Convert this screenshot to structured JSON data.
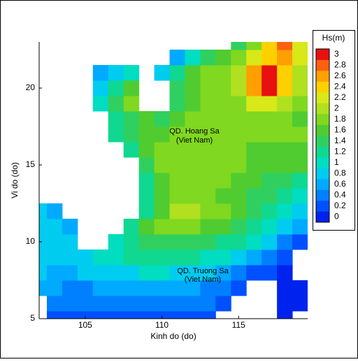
{
  "chart_data": {
    "type": "heatmap",
    "x_label": "Kinh do (do)",
    "y_label": "Vi do (do)",
    "colorbar_title": "Hs(m)",
    "x": [
      102,
      103,
      104,
      105,
      106,
      107,
      108,
      109,
      110,
      111,
      112,
      113,
      114,
      115,
      116,
      117,
      118,
      119
    ],
    "y": [
      5,
      6,
      7,
      8,
      9,
      10,
      11,
      12,
      13,
      14,
      15,
      16,
      17,
      18,
      19,
      20,
      21,
      22,
      23
    ],
    "values": [
      [
        null,
        0.2,
        0.2,
        0.2,
        0.2,
        0.2,
        0.2,
        0.2,
        0.2,
        0.2,
        0.2,
        0.2,
        null,
        null,
        null,
        null,
        0.0,
        null
      ],
      [
        null,
        0.4,
        0.4,
        0.4,
        0.4,
        0.4,
        0.4,
        0.4,
        0.4,
        0.4,
        0.4,
        0.4,
        0.2,
        null,
        null,
        null,
        0.0,
        0.0
      ],
      [
        0.6,
        0.6,
        0.4,
        0.4,
        0.6,
        0.6,
        0.6,
        0.6,
        0.6,
        0.6,
        0.6,
        0.4,
        0.4,
        0.2,
        null,
        null,
        0.0,
        0.0
      ],
      [
        0.8,
        0.6,
        0.6,
        0.8,
        0.8,
        0.8,
        0.8,
        1.0,
        1.0,
        0.8,
        0.8,
        0.8,
        0.6,
        0.4,
        0.2,
        0.2,
        0.0,
        null
      ],
      [
        0.8,
        0.8,
        0.8,
        0.8,
        1.0,
        1.0,
        1.2,
        1.2,
        1.2,
        1.2,
        1.2,
        1.0,
        1.0,
        0.8,
        0.6,
        0.4,
        0.2,
        null
      ],
      [
        0.8,
        0.8,
        0.8,
        null,
        null,
        1.0,
        1.2,
        1.4,
        1.4,
        1.4,
        1.4,
        1.4,
        1.2,
        1.2,
        1.0,
        0.8,
        0.4,
        0.2
      ],
      [
        0.8,
        0.8,
        0.6,
        null,
        null,
        null,
        1.2,
        1.6,
        1.8,
        1.8,
        1.8,
        1.6,
        1.6,
        1.4,
        1.2,
        1.0,
        0.8,
        0.6
      ],
      [
        0.8,
        0.6,
        null,
        null,
        null,
        null,
        null,
        1.2,
        1.6,
        2.0,
        2.0,
        1.8,
        1.8,
        1.6,
        1.4,
        1.2,
        1.0,
        0.8
      ],
      [
        null,
        null,
        null,
        null,
        null,
        null,
        null,
        1.2,
        1.6,
        1.8,
        1.8,
        1.8,
        1.6,
        1.6,
        1.4,
        1.4,
        1.2,
        1.0
      ],
      [
        null,
        null,
        null,
        null,
        null,
        null,
        null,
        1.2,
        1.6,
        1.8,
        1.8,
        1.8,
        1.8,
        1.6,
        1.6,
        1.4,
        1.4,
        1.2
      ],
      [
        null,
        null,
        null,
        null,
        null,
        null,
        null,
        1.4,
        1.8,
        1.8,
        1.8,
        1.8,
        1.8,
        1.8,
        1.6,
        1.6,
        1.6,
        1.6
      ],
      [
        null,
        null,
        null,
        null,
        null,
        null,
        1.2,
        1.6,
        1.8,
        1.8,
        1.8,
        1.8,
        1.8,
        1.8,
        1.6,
        1.6,
        1.6,
        1.6
      ],
      [
        null,
        null,
        null,
        null,
        null,
        1.2,
        1.4,
        1.6,
        1.6,
        1.8,
        1.8,
        1.8,
        1.8,
        1.8,
        1.8,
        1.8,
        1.8,
        1.8
      ],
      [
        null,
        null,
        null,
        null,
        null,
        1.2,
        1.4,
        1.6,
        1.4,
        1.6,
        1.8,
        1.8,
        1.8,
        1.8,
        1.8,
        1.8,
        1.8,
        1.6
      ],
      [
        null,
        null,
        null,
        null,
        1.0,
        1.4,
        1.8,
        null,
        null,
        1.4,
        1.6,
        1.8,
        1.8,
        1.8,
        2.2,
        2.2,
        2.0,
        1.8
      ],
      [
        null,
        null,
        null,
        null,
        0.8,
        1.2,
        1.6,
        null,
        null,
        1.4,
        1.6,
        1.8,
        1.8,
        2.0,
        2.6,
        3.0,
        2.4,
        2.0
      ],
      [
        null,
        null,
        null,
        null,
        0.6,
        0.8,
        1.0,
        null,
        0.8,
        1.2,
        1.6,
        1.8,
        1.8,
        2.0,
        2.6,
        3.0,
        2.4,
        2.0
      ],
      [
        null,
        null,
        null,
        null,
        null,
        null,
        null,
        null,
        null,
        0.6,
        1.0,
        1.4,
        1.6,
        1.8,
        2.2,
        2.4,
        2.6,
        2.2
      ],
      [
        null,
        null,
        null,
        null,
        null,
        null,
        null,
        null,
        null,
        null,
        null,
        null,
        null,
        1.4,
        1.8,
        2.4,
        2.8,
        2.2
      ]
    ],
    "levels": [
      0,
      0.2,
      0.4,
      0.6,
      0.8,
      1,
      1.2,
      1.4,
      1.6,
      1.8,
      2,
      2.2,
      2.4,
      2.6,
      2.8,
      3
    ],
    "colors": [
      "#0022ee",
      "#0050ff",
      "#0080ff",
      "#00aaff",
      "#00ccf0",
      "#00ddc0",
      "#10d890",
      "#30d060",
      "#50cc30",
      "#80d820",
      "#b0e020",
      "#d8e818",
      "#ffd000",
      "#ffa000",
      "#ff6010",
      "#e81010"
    ],
    "xlim": [
      102,
      119.5
    ],
    "ylim": [
      5,
      23
    ],
    "xticks": [
      105,
      110,
      115
    ],
    "yticks": [
      5,
      10,
      15,
      20
    ],
    "annotations": [
      "QD. Hoang Sa",
      "(Viet Nam)",
      "QD. Truong Sa",
      "(Viet Nam)"
    ]
  }
}
